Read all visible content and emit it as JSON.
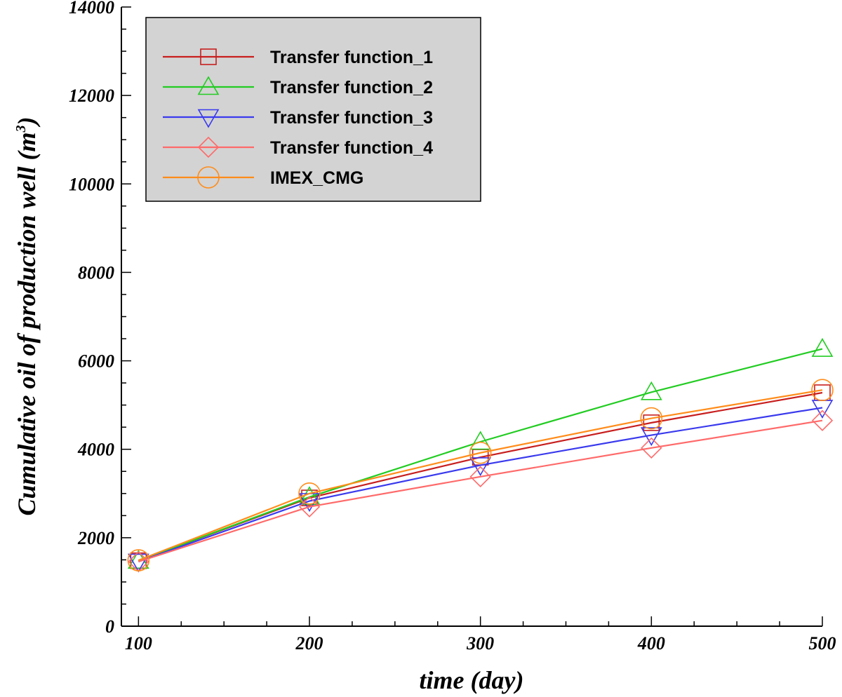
{
  "chart_data": {
    "type": "line",
    "xlabel": "time (day)",
    "ylabel": "Cumulative oil of production well (m",
    "ylabel_sup": "3",
    "ylabel_close": ")",
    "xlim": [
      90,
      500
    ],
    "ylim": [
      0,
      14000
    ],
    "x_ticks": [
      100,
      200,
      300,
      400,
      500
    ],
    "y_ticks": [
      0,
      2000,
      4000,
      6000,
      8000,
      10000,
      12000,
      14000
    ],
    "x": [
      100,
      200,
      300,
      400,
      500
    ],
    "legend_position": "top-left",
    "legend_background": "#d3d3d3",
    "series": [
      {
        "name": "Transfer function_1",
        "color": "#c81e1e",
        "marker": "square",
        "values": [
          1480,
          2900,
          3820,
          4600,
          5280
        ]
      },
      {
        "name": "Transfer function_2",
        "color": "#22cc22",
        "marker": "triangle-up",
        "values": [
          1480,
          2920,
          4170,
          5290,
          6270
        ]
      },
      {
        "name": "Transfer function_3",
        "color": "#3a3aee",
        "marker": "triangle-down",
        "values": [
          1460,
          2830,
          3640,
          4320,
          4940
        ]
      },
      {
        "name": "Transfer function_4",
        "color": "#ff6a6a",
        "marker": "diamond",
        "values": [
          1460,
          2700,
          3380,
          4030,
          4650
        ]
      },
      {
        "name": "IMEX_CMG",
        "color": "#ff8c1a",
        "marker": "circle",
        "values": [
          1490,
          3000,
          3920,
          4700,
          5340
        ]
      }
    ]
  }
}
